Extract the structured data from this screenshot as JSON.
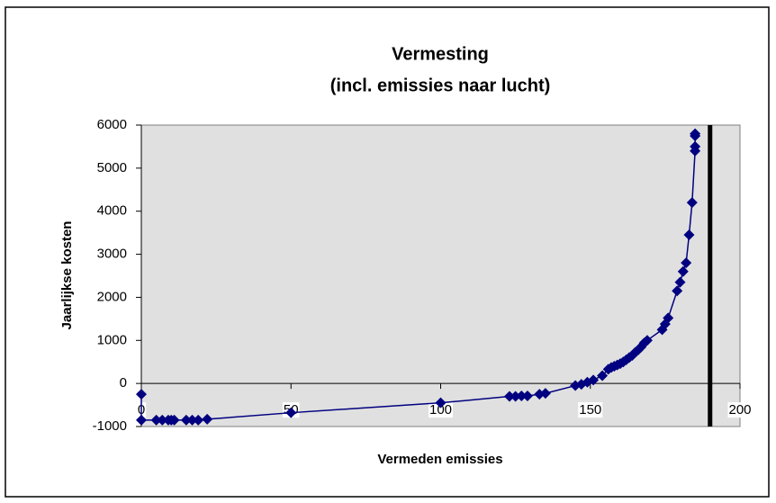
{
  "chart_data": {
    "type": "line",
    "title": "Vermesting",
    "subtitle": "(incl. emissies naar lucht)",
    "x_label": "Vermeden emissies",
    "y_label": "Jaarlijkse kosten",
    "xlim": [
      0,
      200
    ],
    "xticks": [
      0,
      50,
      100,
      150,
      200
    ],
    "ylim": [
      -1000,
      6000
    ],
    "yticks": [
      -1000,
      0,
      1000,
      2000,
      3000,
      4000,
      5000,
      6000
    ],
    "plot_background": "#e0e0e0",
    "color": "#000080",
    "reference_line_x": 190,
    "reference_line_color": "#000000",
    "x": [
      0,
      0,
      5,
      7,
      9,
      10,
      11,
      15,
      17,
      19,
      22,
      50,
      100,
      123,
      125,
      127,
      129,
      133,
      135,
      145,
      147,
      149,
      151,
      154,
      156,
      157,
      158,
      159,
      160,
      161,
      162,
      163,
      164,
      165,
      166,
      167,
      168,
      169,
      174,
      175,
      176,
      179,
      180,
      181,
      182,
      183,
      184,
      185,
      185,
      185,
      185
    ],
    "values": [
      -250,
      -850,
      -850,
      -850,
      -850,
      -850,
      -850,
      -850,
      -850,
      -850,
      -830,
      -680,
      -450,
      -300,
      -300,
      -290,
      -290,
      -250,
      -230,
      -50,
      -20,
      30,
      80,
      180,
      330,
      370,
      400,
      430,
      460,
      500,
      550,
      600,
      650,
      720,
      780,
      850,
      940,
      1000,
      1250,
      1380,
      1520,
      2150,
      2350,
      2600,
      2800,
      3450,
      4200,
      5400,
      5500,
      5750,
      5800
    ]
  }
}
